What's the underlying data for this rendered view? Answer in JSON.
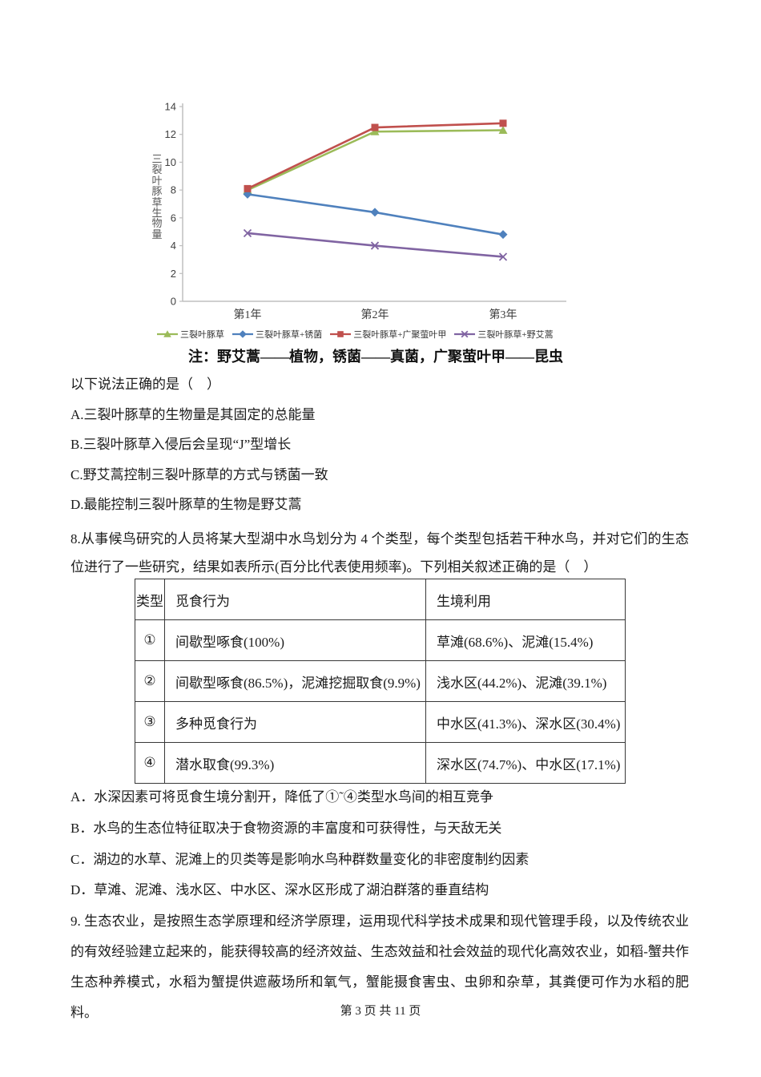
{
  "chart_data": {
    "type": "line",
    "ylabel": "三裂叶豚草生物量",
    "categories": [
      "第1年",
      "第2年",
      "第3年"
    ],
    "ylim": [
      0,
      14
    ],
    "yticks": [
      0,
      2,
      4,
      6,
      8,
      10,
      12,
      14
    ],
    "grid": false,
    "legend_position": "bottom",
    "axis_color": "#bfbfbf",
    "series": [
      {
        "name": "三裂叶豚草",
        "marker": "triangle",
        "color": "#9BBB59",
        "values": [
          8.0,
          12.2,
          12.3
        ]
      },
      {
        "name": "三裂叶豚草+锈菌",
        "marker": "diamond",
        "color": "#4F81BD",
        "values": [
          7.7,
          6.4,
          4.8
        ]
      },
      {
        "name": "三裂叶豚草+广聚萤叶甲",
        "marker": "square",
        "color": "#C0504D",
        "values": [
          8.1,
          12.5,
          12.8
        ]
      },
      {
        "name": "三裂叶豚草+野艾蒿",
        "marker": "x",
        "color": "#8064A2",
        "values": [
          4.9,
          4.0,
          3.2
        ]
      }
    ],
    "draw_order": [
      0,
      3,
      1,
      2
    ],
    "note": "注：野艾蒿——植物，锈菌——真菌，广聚萤叶甲——昆虫"
  },
  "question7": {
    "stem": "以下说法正确的是（　）",
    "options": [
      "A.三裂叶豚草的生物量是其固定的总能量",
      "B.三裂叶豚草入侵后会呈现“J”型增长",
      "C.野艾蒿控制三裂叶豚草的方式与锈菌一致",
      "D.最能控制三裂叶豚草的生物是野艾蒿"
    ]
  },
  "question8": {
    "stem": "8.从事候鸟研究的人员将某大型湖中水鸟划分为 4 个类型，每个类型包括若干种水鸟，并对它们的生态位进行了一些研究，结果如表所示(百分比代表使用频率)。下列相关叙述正确的是（　）",
    "table": {
      "headers": [
        "类型",
        "觅食行为",
        "生境利用"
      ],
      "rows": [
        [
          "①",
          "间歇型啄食(100%)",
          "草滩(68.6%)、泥滩(15.4%)"
        ],
        [
          "②",
          "间歇型啄食(86.5%)，泥滩挖掘取食(9.9%)",
          "浅水区(44.2%)、泥滩(39.1%)"
        ],
        [
          "③",
          "多种觅食行为",
          "中水区(41.3%)、深水区(30.4%)"
        ],
        [
          "④",
          "潜水取食(99.3%)",
          "深水区(74.7%)、中水区(17.1%)"
        ]
      ]
    },
    "options": [
      "A．水深因素可将觅食生境分割开，降低了①˜④类型水鸟间的相互竞争",
      "B．水鸟的生态位特征取决于食物资源的丰富度和可获得性，与天敌无关",
      "C．湖边的水草、泥滩上的贝类等是影响水鸟种群数量变化的非密度制约因素",
      "D．草滩、泥滩、浅水区、中水区、深水区形成了湖泊群落的垂直结构"
    ]
  },
  "question9": {
    "stem": "9. 生态农业，是按照生态学原理和经济学原理，运用现代科学技术成果和现代管理手段，以及传统农业的有效经验建立起来的，能获得较高的经济效益、生态效益和社会效益的现代化高效农业，如稻-蟹共作生态种养模式，水稻为蟹提供遮蔽场所和氧气，蟹能摄食害虫、虫卵和杂草，其粪便可作为水稻的肥料。"
  },
  "footer": "第 3 页 共 11 页"
}
